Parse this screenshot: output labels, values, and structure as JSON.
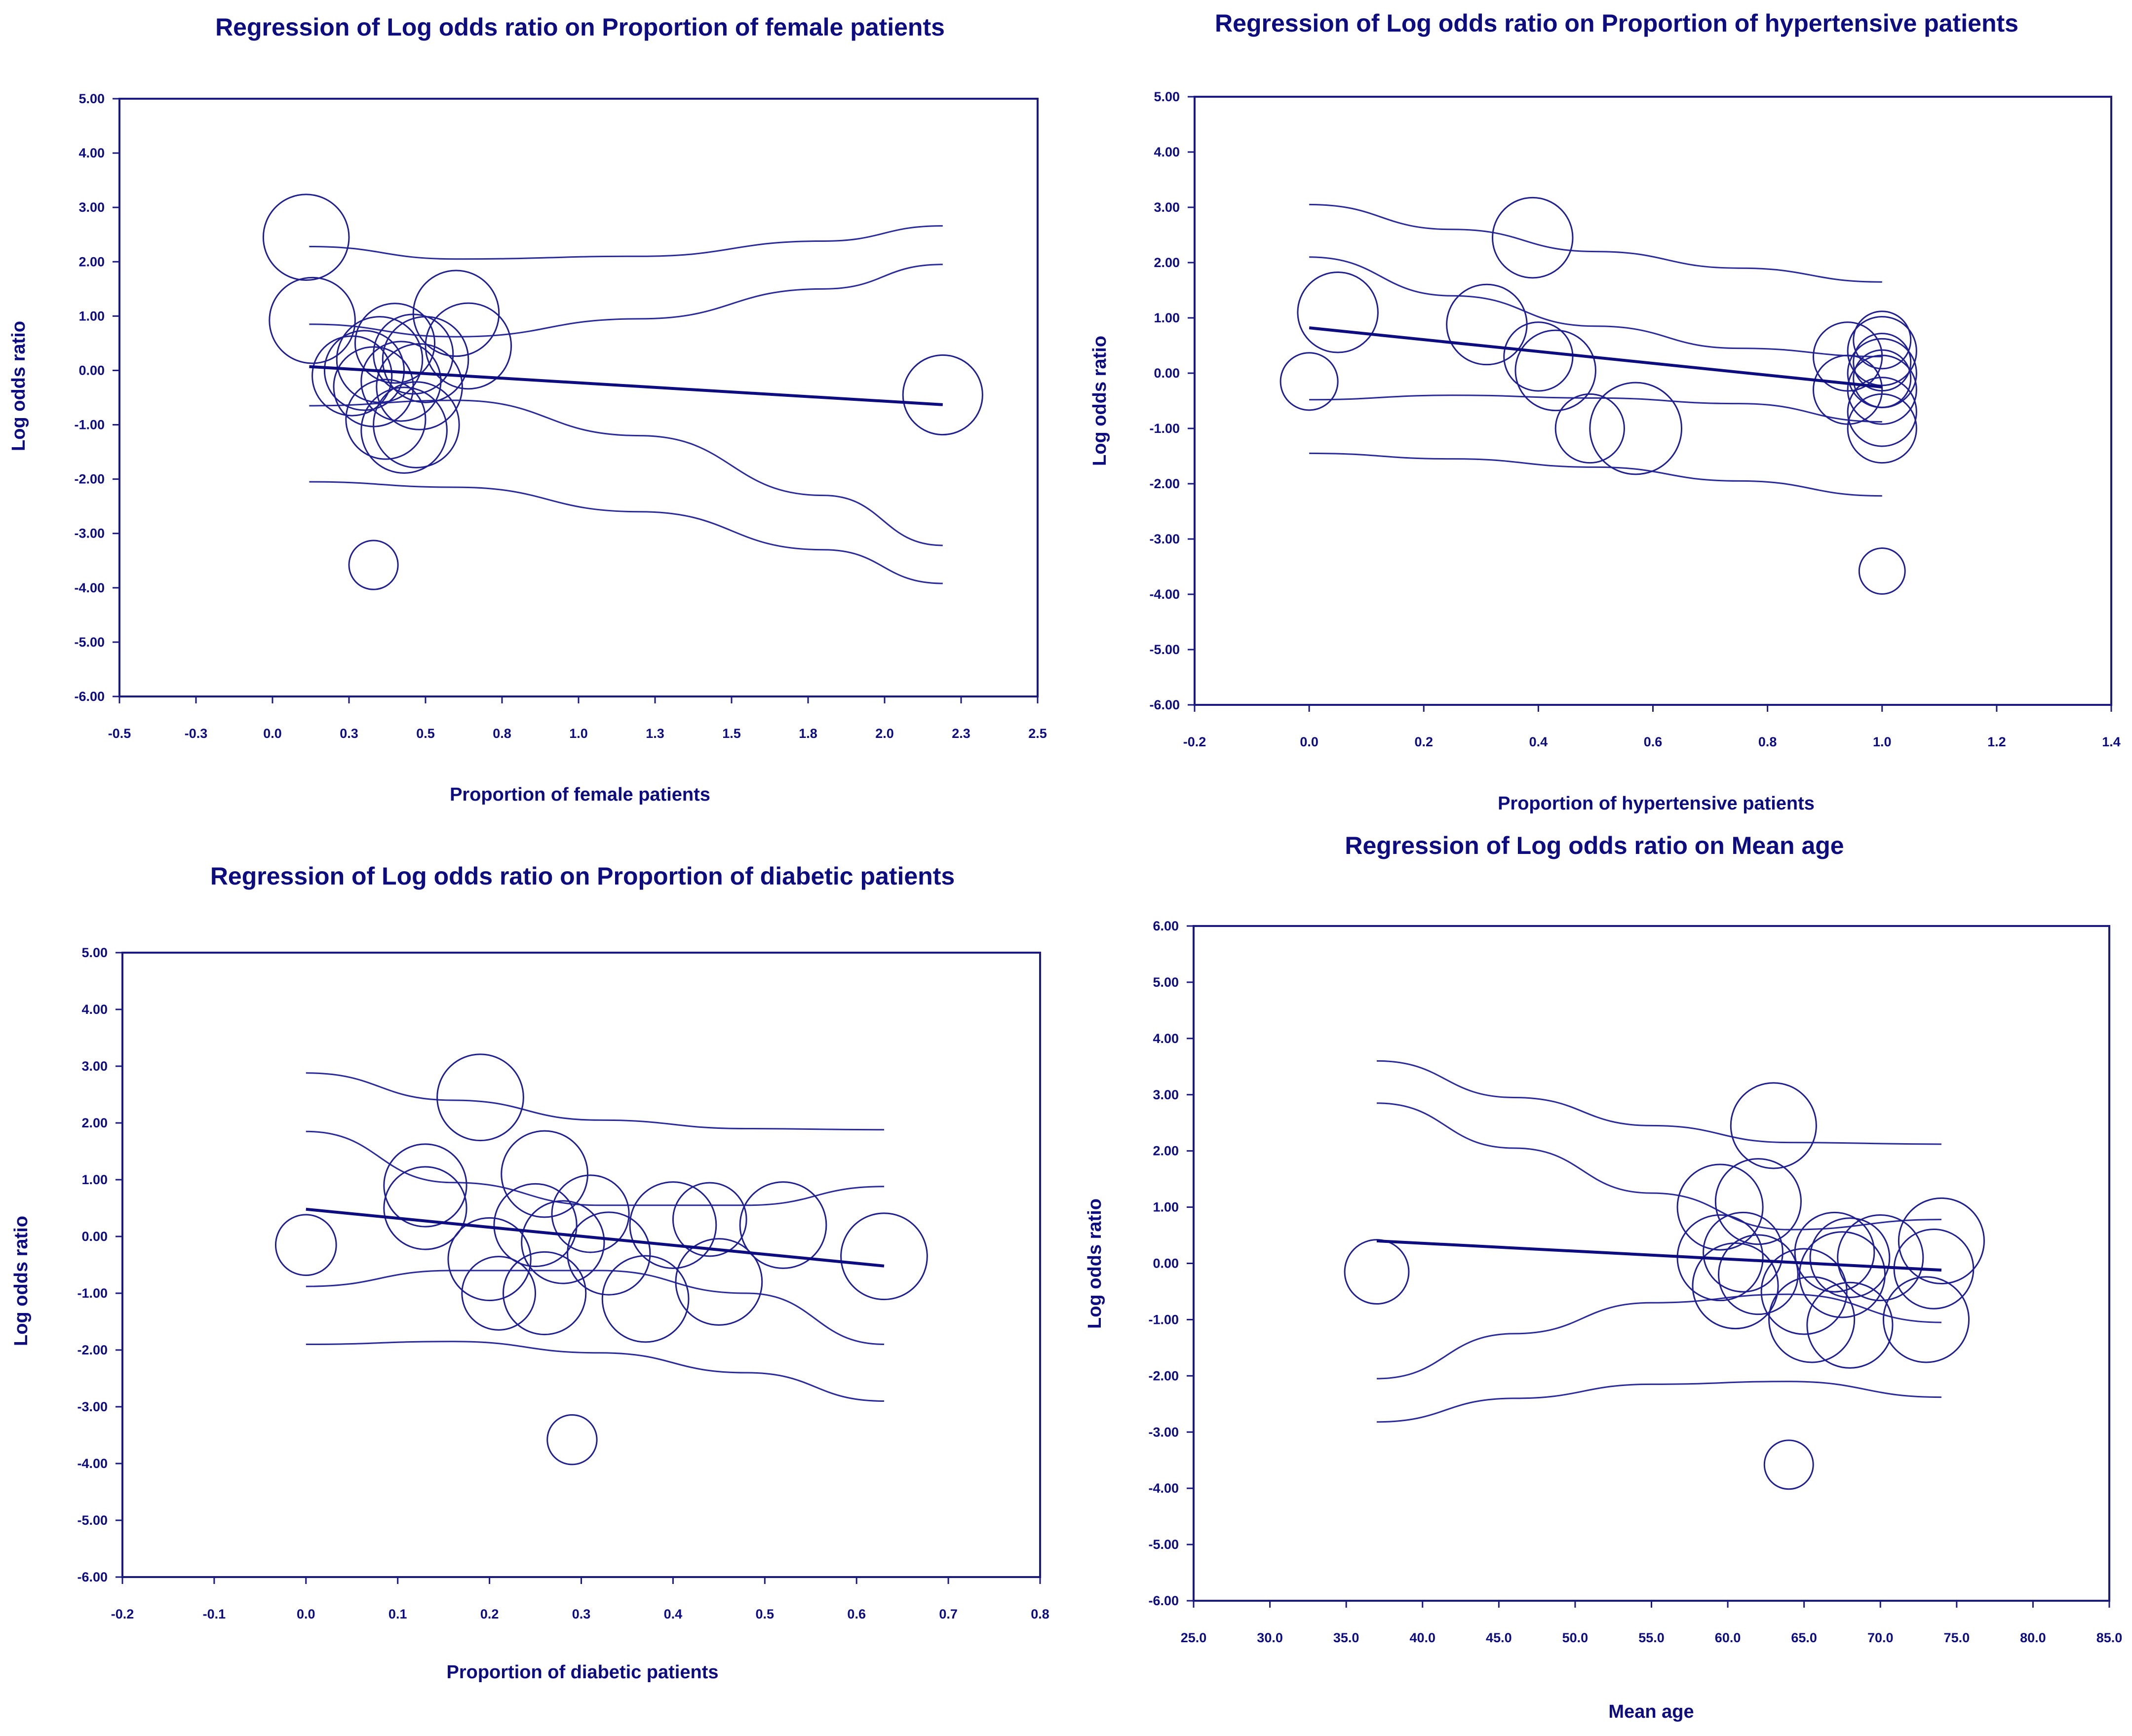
{
  "chart_data": [
    {
      "type": "scatter",
      "title": "Regression of Log odds ratio on Proportion of female patients",
      "xlabel": "Proportion of female patients",
      "ylabel": "Log odds ratio",
      "xlim": [
        -0.5,
        2.5
      ],
      "ylim": [
        -6,
        5
      ],
      "xticks": [
        "-0.5",
        "-0.3",
        "0.0",
        "0.3",
        "0.5",
        "0.8",
        "1.0",
        "1.3",
        "1.5",
        "1.8",
        "2.0",
        "2.3",
        "2.5"
      ],
      "xtick_values": [
        -0.5,
        -0.25,
        0.0,
        0.25,
        0.5,
        0.75,
        1.0,
        1.25,
        1.5,
        1.75,
        2.0,
        2.25,
        2.5
      ],
      "yticks": [
        "5.00",
        "4.00",
        "3.00",
        "2.00",
        "1.00",
        "0.00",
        "-1.00",
        "-2.00",
        "-3.00",
        "-4.00",
        "-5.00",
        "-6.00"
      ],
      "ytick_values": [
        5,
        4,
        3,
        2,
        1,
        0,
        -1,
        -2,
        -3,
        -4,
        -5,
        -6
      ],
      "points": [
        {
          "x": 0.11,
          "y": 2.45,
          "r": 0.14
        },
        {
          "x": 0.13,
          "y": 0.92,
          "r": 0.14
        },
        {
          "x": 0.26,
          "y": -0.1,
          "r": 0.13
        },
        {
          "x": 0.3,
          "y": 0.0,
          "r": 0.13
        },
        {
          "x": 0.33,
          "y": -0.3,
          "r": 0.13
        },
        {
          "x": 0.35,
          "y": 0.2,
          "r": 0.14
        },
        {
          "x": 0.37,
          "y": -0.9,
          "r": 0.13
        },
        {
          "x": 0.4,
          "y": 0.5,
          "r": 0.13
        },
        {
          "x": 0.42,
          "y": -0.2,
          "r": 0.13
        },
        {
          "x": 0.43,
          "y": -1.1,
          "r": 0.14
        },
        {
          "x": 0.46,
          "y": 0.3,
          "r": 0.13
        },
        {
          "x": 0.48,
          "y": -0.3,
          "r": 0.14
        },
        {
          "x": 0.5,
          "y": 0.2,
          "r": 0.14
        },
        {
          "x": 0.47,
          "y": -1.0,
          "r": 0.14
        },
        {
          "x": 0.6,
          "y": 1.05,
          "r": 0.14
        },
        {
          "x": 0.64,
          "y": 0.45,
          "r": 0.14
        },
        {
          "x": 0.33,
          "y": -3.58,
          "r": 0.08
        },
        {
          "x": 2.19,
          "y": -0.45,
          "r": 0.13
        }
      ],
      "fit": {
        "x": [
          0.12,
          2.19
        ],
        "y": [
          0.07,
          -0.63
        ]
      },
      "bands": [
        {
          "x": [
            0.12,
            0.6,
            1.2,
            1.8,
            2.19
          ],
          "y": [
            2.28,
            2.05,
            2.1,
            2.38,
            2.66
          ]
        },
        {
          "x": [
            0.12,
            0.6,
            1.2,
            1.8,
            2.19
          ],
          "y": [
            0.85,
            0.62,
            0.95,
            1.5,
            1.95
          ]
        },
        {
          "x": [
            0.12,
            0.6,
            1.2,
            1.8,
            2.19
          ],
          "y": [
            -0.65,
            -0.55,
            -1.2,
            -2.3,
            -3.22
          ]
        },
        {
          "x": [
            0.12,
            0.6,
            1.2,
            1.8,
            2.19
          ],
          "y": [
            -2.05,
            -2.15,
            -2.6,
            -3.3,
            -3.92
          ]
        }
      ]
    },
    {
      "type": "scatter",
      "title": "Regression of Log odds ratio on Proportion of hypertensive patients",
      "xlabel": "Proportion of hypertensive patients",
      "ylabel": "Log odds ratio",
      "xlim": [
        -0.2,
        1.4
      ],
      "ylim": [
        -6,
        5
      ],
      "xticks": [
        "-0.2",
        "0.0",
        "0.2",
        "0.4",
        "0.6",
        "0.8",
        "1.0",
        "1.2",
        "1.4"
      ],
      "xtick_values": [
        -0.2,
        0.0,
        0.2,
        0.4,
        0.6,
        0.8,
        1.0,
        1.2,
        1.4
      ],
      "yticks": [
        "5.00",
        "4.00",
        "3.00",
        "2.00",
        "1.00",
        "0.00",
        "-1.00",
        "-2.00",
        "-3.00",
        "-4.00",
        "-5.00",
        "-6.00"
      ],
      "ytick_values": [
        5,
        4,
        3,
        2,
        1,
        0,
        -1,
        -2,
        -3,
        -4,
        -5,
        -6
      ],
      "points": [
        {
          "x": 0.0,
          "y": -0.15,
          "r": 0.05
        },
        {
          "x": 0.05,
          "y": 1.1,
          "r": 0.07
        },
        {
          "x": 0.31,
          "y": 0.88,
          "r": 0.07
        },
        {
          "x": 0.39,
          "y": 2.45,
          "r": 0.07
        },
        {
          "x": 0.4,
          "y": 0.3,
          "r": 0.06
        },
        {
          "x": 0.43,
          "y": 0.05,
          "r": 0.07
        },
        {
          "x": 0.49,
          "y": -1.0,
          "r": 0.06
        },
        {
          "x": 0.57,
          "y": -1.0,
          "r": 0.08
        },
        {
          "x": 0.94,
          "y": 0.3,
          "r": 0.06
        },
        {
          "x": 0.94,
          "y": -0.3,
          "r": 0.06
        },
        {
          "x": 1.0,
          "y": 0.6,
          "r": 0.05
        },
        {
          "x": 1.0,
          "y": 0.4,
          "r": 0.06
        },
        {
          "x": 1.0,
          "y": 0.2,
          "r": 0.05
        },
        {
          "x": 1.0,
          "y": 0.0,
          "r": 0.06
        },
        {
          "x": 1.0,
          "y": -0.1,
          "r": 0.05
        },
        {
          "x": 1.0,
          "y": -0.3,
          "r": 0.06
        },
        {
          "x": 1.0,
          "y": -0.7,
          "r": 0.06
        },
        {
          "x": 1.0,
          "y": -1.0,
          "r": 0.06
        },
        {
          "x": 1.0,
          "y": -3.58,
          "r": 0.04
        }
      ],
      "fit": {
        "x": [
          0.0,
          1.0
        ],
        "y": [
          0.82,
          -0.25
        ]
      },
      "bands": [
        {
          "x": [
            0.0,
            0.25,
            0.5,
            0.75,
            1.0
          ],
          "y": [
            3.05,
            2.6,
            2.2,
            1.9,
            1.65
          ]
        },
        {
          "x": [
            0.0,
            0.25,
            0.5,
            0.75,
            1.0
          ],
          "y": [
            2.1,
            1.4,
            0.85,
            0.45,
            0.3
          ]
        },
        {
          "x": [
            0.0,
            0.25,
            0.5,
            0.75,
            1.0
          ],
          "y": [
            -0.48,
            -0.4,
            -0.45,
            -0.55,
            -0.88
          ]
        },
        {
          "x": [
            0.0,
            0.25,
            0.5,
            0.75,
            1.0
          ],
          "y": [
            -1.45,
            -1.55,
            -1.7,
            -1.95,
            -2.22
          ]
        }
      ]
    },
    {
      "type": "scatter",
      "title": "Regression of Log odds ratio on Proportion of diabetic patients",
      "xlabel": "Proportion of diabetic patients",
      "ylabel": "Log odds ratio",
      "xlim": [
        -0.2,
        0.8
      ],
      "ylim": [
        -6,
        5
      ],
      "xticks": [
        "-0.2",
        "-0.1",
        "0.0",
        "0.1",
        "0.2",
        "0.3",
        "0.4",
        "0.5",
        "0.6",
        "0.7",
        "0.8"
      ],
      "xtick_values": [
        -0.2,
        -0.1,
        0.0,
        0.1,
        0.2,
        0.3,
        0.4,
        0.5,
        0.6,
        0.7,
        0.8
      ],
      "yticks": [
        "5.00",
        "4.00",
        "3.00",
        "2.00",
        "1.00",
        "0.00",
        "-1.00",
        "-2.00",
        "-3.00",
        "-4.00",
        "-5.00",
        "-6.00"
      ],
      "ytick_values": [
        5,
        4,
        3,
        2,
        1,
        0,
        -1,
        -2,
        -3,
        -4,
        -5,
        -6
      ],
      "points": [
        {
          "x": 0.0,
          "y": -0.15,
          "r": 0.033
        },
        {
          "x": 0.13,
          "y": 0.9,
          "r": 0.045
        },
        {
          "x": 0.13,
          "y": 0.5,
          "r": 0.045
        },
        {
          "x": 0.19,
          "y": 2.45,
          "r": 0.047
        },
        {
          "x": 0.2,
          "y": -0.4,
          "r": 0.045
        },
        {
          "x": 0.21,
          "y": -1.0,
          "r": 0.04
        },
        {
          "x": 0.25,
          "y": 0.2,
          "r": 0.045
        },
        {
          "x": 0.26,
          "y": 1.1,
          "r": 0.047
        },
        {
          "x": 0.26,
          "y": -1.0,
          "r": 0.045
        },
        {
          "x": 0.28,
          "y": -0.1,
          "r": 0.045
        },
        {
          "x": 0.31,
          "y": 0.4,
          "r": 0.042
        },
        {
          "x": 0.33,
          "y": -0.3,
          "r": 0.045
        },
        {
          "x": 0.37,
          "y": -1.1,
          "r": 0.047
        },
        {
          "x": 0.4,
          "y": 0.2,
          "r": 0.047
        },
        {
          "x": 0.44,
          "y": 0.3,
          "r": 0.04
        },
        {
          "x": 0.45,
          "y": -0.8,
          "r": 0.047
        },
        {
          "x": 0.52,
          "y": 0.2,
          "r": 0.047
        },
        {
          "x": 0.63,
          "y": -0.35,
          "r": 0.047
        },
        {
          "x": 0.29,
          "y": -3.58,
          "r": 0.027
        }
      ],
      "fit": {
        "x": [
          0.0,
          0.63
        ],
        "y": [
          0.48,
          -0.52
        ]
      },
      "bands": [
        {
          "x": [
            0.0,
            0.16,
            0.32,
            0.48,
            0.63
          ],
          "y": [
            2.88,
            2.4,
            2.05,
            1.9,
            1.88
          ]
        },
        {
          "x": [
            0.0,
            0.16,
            0.32,
            0.48,
            0.63
          ],
          "y": [
            1.85,
            0.95,
            0.55,
            0.55,
            0.88
          ]
        },
        {
          "x": [
            0.0,
            0.16,
            0.32,
            0.48,
            0.63
          ],
          "y": [
            -0.88,
            -0.6,
            -0.6,
            -1.0,
            -1.9
          ]
        },
        {
          "x": [
            0.0,
            0.16,
            0.32,
            0.48,
            0.63
          ],
          "y": [
            -1.9,
            -1.85,
            -2.05,
            -2.4,
            -2.9
          ]
        }
      ]
    },
    {
      "type": "scatter",
      "title": "Regression of Log odds ratio on Mean age",
      "xlabel": "Mean age",
      "ylabel": "Log odds ratio",
      "xlim": [
        25,
        85
      ],
      "ylim": [
        -6,
        6
      ],
      "xticks": [
        "25.0",
        "30.0",
        "35.0",
        "40.0",
        "45.0",
        "50.0",
        "55.0",
        "60.0",
        "65.0",
        "70.0",
        "75.0",
        "80.0",
        "85.0"
      ],
      "xtick_values": [
        25,
        30,
        35,
        40,
        45,
        50,
        55,
        60,
        65,
        70,
        75,
        80,
        85
      ],
      "yticks": [
        "6.00",
        "5.00",
        "4.00",
        "3.00",
        "2.00",
        "1.00",
        "0.00",
        "-1.00",
        "-2.00",
        "-3.00",
        "-4.00",
        "-5.00",
        "-6.00"
      ],
      "ytick_values": [
        6,
        5,
        4,
        3,
        2,
        1,
        0,
        -1,
        -2,
        -3,
        -4,
        -5,
        -6
      ],
      "points": [
        {
          "x": 37.0,
          "y": -0.15,
          "r": 2.1
        },
        {
          "x": 59.5,
          "y": 1.0,
          "r": 2.8
        },
        {
          "x": 59.5,
          "y": 0.1,
          "r": 2.8
        },
        {
          "x": 61.0,
          "y": 0.2,
          "r": 2.6
        },
        {
          "x": 60.5,
          "y": -0.4,
          "r": 2.8
        },
        {
          "x": 62.0,
          "y": 1.1,
          "r": 2.8
        },
        {
          "x": 63.0,
          "y": 2.45,
          "r": 2.8
        },
        {
          "x": 62.0,
          "y": -0.2,
          "r": 2.6
        },
        {
          "x": 65.0,
          "y": -0.5,
          "r": 2.8
        },
        {
          "x": 65.5,
          "y": -1.0,
          "r": 2.8
        },
        {
          "x": 67.0,
          "y": 0.2,
          "r": 2.6
        },
        {
          "x": 67.5,
          "y": -0.2,
          "r": 2.8
        },
        {
          "x": 68.0,
          "y": 0.1,
          "r": 2.6
        },
        {
          "x": 68.0,
          "y": -1.1,
          "r": 2.8
        },
        {
          "x": 70.0,
          "y": 0.1,
          "r": 2.8
        },
        {
          "x": 73.0,
          "y": -1.0,
          "r": 2.8
        },
        {
          "x": 73.5,
          "y": -0.1,
          "r": 2.6
        },
        {
          "x": 74.0,
          "y": 0.4,
          "r": 2.8
        },
        {
          "x": 64.0,
          "y": -3.58,
          "r": 1.6
        }
      ],
      "fit": {
        "x": [
          37.0,
          74.0
        ],
        "y": [
          0.4,
          -0.12
        ]
      },
      "bands": [
        {
          "x": [
            37,
            46,
            55,
            64,
            74
          ],
          "y": [
            3.6,
            2.95,
            2.45,
            2.15,
            2.12
          ]
        },
        {
          "x": [
            37,
            46,
            55,
            64,
            74
          ],
          "y": [
            2.85,
            2.05,
            1.25,
            0.6,
            0.78
          ]
        },
        {
          "x": [
            37,
            46,
            55,
            64,
            74
          ],
          "y": [
            -2.05,
            -1.25,
            -0.7,
            -0.55,
            -1.05
          ]
        },
        {
          "x": [
            37,
            46,
            55,
            64,
            74
          ],
          "y": [
            -2.82,
            -2.4,
            -2.15,
            -2.1,
            -2.38
          ]
        }
      ]
    }
  ]
}
